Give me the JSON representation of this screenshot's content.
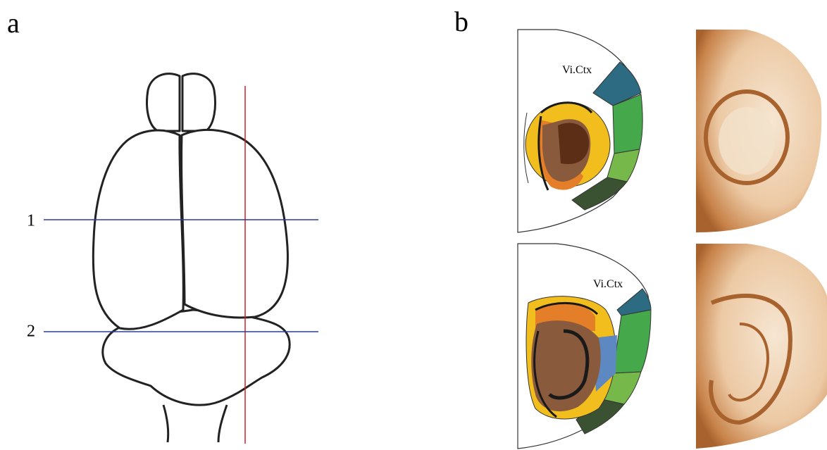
{
  "panels": [
    {
      "label": "a",
      "lines": [
        {
          "label": "1"
        },
        {
          "label": "2"
        }
      ]
    },
    {
      "label": "b",
      "sections": [
        {
          "region_label": "Vi.Ctx"
        },
        {
          "region_label": "Vi.Ctx"
        }
      ]
    }
  ]
}
